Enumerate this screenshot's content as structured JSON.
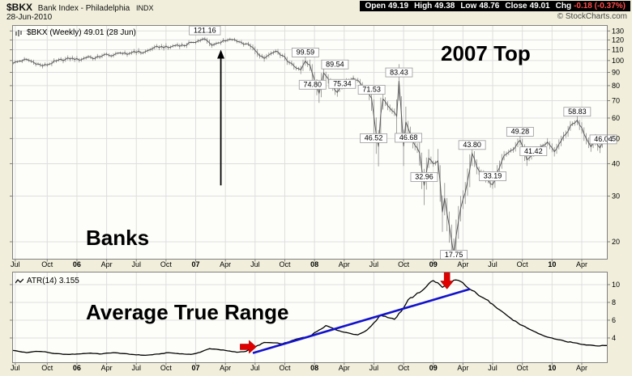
{
  "header": {
    "symbol": "$BKX",
    "title": "Bank Index - Philadelphia",
    "exchange": "INDX",
    "date": "28-Jun-2010",
    "copyright": "© StockCharts.com",
    "quote": {
      "open_label": "Open",
      "open": "49.19",
      "high_label": "High",
      "high": "49.38",
      "low_label": "Low",
      "low": "48.76",
      "close_label": "Close",
      "close": "49.01",
      "chg_label": "Chg",
      "chg": "-0.18 (-0.37%)"
    }
  },
  "colors": {
    "bg": "#F1EFDB",
    "plot_bg": "#FDFDF9",
    "grid": "#DEDEDE",
    "border": "#808080",
    "price_wick": "#8C8C8C",
    "price_line": "#5A5A5A",
    "atr_line": "#000000",
    "trendline": "#1212CC",
    "red_arrow": "#E00000",
    "black_arrow": "#000000",
    "annotation_border": "#999999",
    "band_bg": "#000000",
    "chg_color": "#FF4A4A"
  },
  "xaxis": {
    "ticks": [
      {
        "week": 1,
        "label": "Jul"
      },
      {
        "week": 15,
        "label": "Oct"
      },
      {
        "week": 28,
        "label": "06",
        "year": true
      },
      {
        "week": 41,
        "label": "Apr"
      },
      {
        "week": 54,
        "label": "Jul"
      },
      {
        "week": 67,
        "label": "Oct"
      },
      {
        "week": 80,
        "label": "07",
        "year": true
      },
      {
        "week": 93,
        "label": "Apr"
      },
      {
        "week": 106,
        "label": "Jul"
      },
      {
        "week": 119,
        "label": "Oct"
      },
      {
        "week": 132,
        "label": "08",
        "year": true
      },
      {
        "week": 145,
        "label": "Apr"
      },
      {
        "week": 158,
        "label": "Jul"
      },
      {
        "week": 171,
        "label": "Oct"
      },
      {
        "week": 184,
        "label": "09",
        "year": true
      },
      {
        "week": 197,
        "label": "Apr"
      },
      {
        "week": 210,
        "label": "Jul"
      },
      {
        "week": 223,
        "label": "Oct"
      },
      {
        "week": 236,
        "label": "10",
        "year": true
      },
      {
        "week": 249,
        "label": "Apr"
      }
    ]
  },
  "chart_data": [
    {
      "type": "line",
      "title": "$BKX (Weekly) 49.01 (28 Jun)",
      "scale": "log",
      "ylim": [
        17.2,
        136
      ],
      "yticks": [
        20,
        30,
        40,
        50,
        60,
        70,
        80,
        90,
        100,
        110,
        120,
        130
      ],
      "x_weeks": 260,
      "x_range": "Jun-2005 to Jun-2010 (weekly)",
      "anchors": [
        [
          0,
          97.5
        ],
        [
          3,
          99.5
        ],
        [
          6,
          101
        ],
        [
          9,
          98.5
        ],
        [
          13,
          95.2
        ],
        [
          16,
          97
        ],
        [
          19,
          99.5
        ],
        [
          23,
          101
        ],
        [
          26,
          102.3
        ],
        [
          29,
          100.2
        ],
        [
          33,
          103.5
        ],
        [
          36,
          102
        ],
        [
          40,
          105.5
        ],
        [
          43,
          104
        ],
        [
          47,
          107
        ],
        [
          50,
          105.5
        ],
        [
          53,
          108.5
        ],
        [
          57,
          107
        ],
        [
          61,
          111
        ],
        [
          65,
          113.5
        ],
        [
          68,
          112
        ],
        [
          72,
          115
        ],
        [
          75,
          114
        ],
        [
          78,
          117.5
        ],
        [
          81,
          119
        ],
        [
          84,
          121.16
        ],
        [
          87,
          114.5
        ],
        [
          90,
          117
        ],
        [
          93,
          119
        ],
        [
          96,
          120.3
        ],
        [
          99,
          118
        ],
        [
          102,
          116
        ],
        [
          104,
          113.5
        ],
        [
          107,
          107
        ],
        [
          110,
          101.8
        ],
        [
          113,
          106.5
        ],
        [
          116,
          108
        ],
        [
          118,
          104.5
        ],
        [
          121,
          98
        ],
        [
          124,
          93.5
        ],
        [
          126,
          92
        ],
        [
          128,
          99.59
        ],
        [
          130,
          96
        ],
        [
          132,
          84
        ],
        [
          134,
          74.8
        ],
        [
          136,
          89.54
        ],
        [
          138,
          85
        ],
        [
          140,
          80
        ],
        [
          142,
          75.34
        ],
        [
          144,
          79
        ],
        [
          146,
          83
        ],
        [
          149,
          85.5
        ],
        [
          152,
          82
        ],
        [
          155,
          77
        ],
        [
          157,
          71.53
        ],
        [
          159,
          52
        ],
        [
          160,
          46.52
        ],
        [
          161,
          62
        ],
        [
          162,
          71
        ],
        [
          164,
          67
        ],
        [
          166,
          64
        ],
        [
          168,
          61
        ],
        [
          169,
          83.43
        ],
        [
          171,
          46.68
        ],
        [
          172,
          58
        ],
        [
          174,
          52
        ],
        [
          176,
          47
        ],
        [
          178,
          44
        ],
        [
          180,
          32.96
        ],
        [
          182,
          42
        ],
        [
          184,
          40
        ],
        [
          186,
          41
        ],
        [
          187,
          34
        ],
        [
          188,
          26
        ],
        [
          189,
          29.5
        ],
        [
          191,
          23
        ],
        [
          193,
          17.75
        ],
        [
          194,
          21
        ],
        [
          196,
          27
        ],
        [
          198,
          31
        ],
        [
          200,
          38
        ],
        [
          201,
          43.8
        ],
        [
          203,
          39
        ],
        [
          205,
          37
        ],
        [
          207,
          35
        ],
        [
          210,
          33.19
        ],
        [
          212,
          37
        ],
        [
          215,
          43
        ],
        [
          218,
          45
        ],
        [
          220,
          46.5
        ],
        [
          222,
          49.28
        ],
        [
          225,
          41.42
        ],
        [
          227,
          43
        ],
        [
          229,
          45.5
        ],
        [
          232,
          47
        ],
        [
          234,
          48.5
        ],
        [
          237,
          44.5
        ],
        [
          240,
          49
        ],
        [
          242,
          52
        ],
        [
          244,
          56
        ],
        [
          247,
          58.83
        ],
        [
          249,
          55
        ],
        [
          251,
          50
        ],
        [
          253,
          46.5
        ],
        [
          255,
          49.5
        ],
        [
          257,
          46.04
        ],
        [
          259,
          49.01
        ],
        [
          260,
          49.01
        ]
      ],
      "annotations": [
        {
          "week": 84,
          "value": 121.16,
          "label": "121.16"
        },
        {
          "week": 128,
          "value": 99.59,
          "label": "99.59"
        },
        {
          "week": 136,
          "value": 89.54,
          "label": "89.54",
          "dx": 14
        },
        {
          "week": 134,
          "value": 74.8,
          "label": "74.80",
          "dx": -8
        },
        {
          "week": 142,
          "value": 75.34,
          "label": "75.34",
          "dx": 6
        },
        {
          "week": 157,
          "value": 71.53,
          "label": "71.53"
        },
        {
          "week": 169,
          "value": 83.43,
          "label": "83.43"
        },
        {
          "week": 160,
          "value": 46.52,
          "label": "46.52",
          "dx": -6
        },
        {
          "week": 171,
          "value": 46.68,
          "label": "46.68",
          "dx": 6
        },
        {
          "week": 180,
          "value": 32.96,
          "label": "32.96"
        },
        {
          "week": 193,
          "value": 17.75,
          "label": "17.75",
          "dy": 10
        },
        {
          "week": 201,
          "value": 43.8,
          "label": "43.80"
        },
        {
          "week": 210,
          "value": 33.19,
          "label": "33.19"
        },
        {
          "week": 222,
          "value": 49.28,
          "label": "49.28"
        },
        {
          "week": 225,
          "value": 41.42,
          "label": "41.42",
          "dx": 8
        },
        {
          "week": 247,
          "value": 58.83,
          "label": "58.83"
        },
        {
          "week": 257,
          "value": 46.04,
          "label": "46.04",
          "dx": 4
        }
      ],
      "black_arrow": {
        "week": 91,
        "from_value": 33,
        "to_value": 110
      },
      "texts": [
        {
          "label": "2007 Top",
          "week": 208,
          "value": 106
        },
        {
          "label": "Banks",
          "week": 47,
          "value": 22
        }
      ]
    },
    {
      "type": "line",
      "title": "ATR(14) 3.155",
      "scale": "linear",
      "ylim": [
        1.27,
        11.36
      ],
      "yticks": [
        4,
        6,
        8,
        10
      ],
      "x_weeks": 260,
      "anchors": [
        [
          0,
          2.6
        ],
        [
          6,
          2.35
        ],
        [
          10,
          2.5
        ],
        [
          14,
          2.45
        ],
        [
          18,
          2.25
        ],
        [
          24,
          2.15
        ],
        [
          28,
          2.2
        ],
        [
          34,
          2.3
        ],
        [
          38,
          2.2
        ],
        [
          44,
          2.35
        ],
        [
          48,
          2.25
        ],
        [
          52,
          2.15
        ],
        [
          58,
          2.05
        ],
        [
          64,
          2.2
        ],
        [
          68,
          2.35
        ],
        [
          72,
          2.25
        ],
        [
          78,
          2.15
        ],
        [
          82,
          2.4
        ],
        [
          86,
          2.8
        ],
        [
          90,
          2.7
        ],
        [
          94,
          2.55
        ],
        [
          98,
          2.4
        ],
        [
          102,
          2.5
        ],
        [
          106,
          3.0
        ],
        [
          110,
          3.5
        ],
        [
          114,
          3.45
        ],
        [
          118,
          3.35
        ],
        [
          122,
          3.7
        ],
        [
          126,
          4.0
        ],
        [
          130,
          4.2
        ],
        [
          134,
          4.9
        ],
        [
          137,
          5.4
        ],
        [
          140,
          5.1
        ],
        [
          143,
          4.8
        ],
        [
          147,
          4.55
        ],
        [
          151,
          4.35
        ],
        [
          155,
          4.9
        ],
        [
          158,
          5.7
        ],
        [
          161,
          6.6
        ],
        [
          164,
          6.3
        ],
        [
          167,
          6.1
        ],
        [
          170,
          7.0
        ],
        [
          173,
          8.3
        ],
        [
          176,
          8.8
        ],
        [
          179,
          9.3
        ],
        [
          182,
          10.1
        ],
        [
          184,
          10.45
        ],
        [
          186,
          10.2
        ],
        [
          188,
          9.7
        ],
        [
          190,
          9.9
        ],
        [
          193,
          10.5
        ],
        [
          196,
          10.35
        ],
        [
          198,
          9.9
        ],
        [
          200,
          9.5
        ],
        [
          203,
          9.0
        ],
        [
          206,
          8.5
        ],
        [
          210,
          7.8
        ],
        [
          214,
          7.0
        ],
        [
          218,
          6.2
        ],
        [
          222,
          5.5
        ],
        [
          226,
          5.0
        ],
        [
          230,
          4.5
        ],
        [
          234,
          4.1
        ],
        [
          238,
          3.85
        ],
        [
          242,
          3.6
        ],
        [
          246,
          3.45
        ],
        [
          250,
          3.25
        ],
        [
          253,
          3.2
        ],
        [
          256,
          3.1
        ],
        [
          259,
          3.155
        ],
        [
          260,
          3.155
        ]
      ],
      "trendline": {
        "from_week": 105,
        "from_value": 2.3,
        "to_week": 200,
        "to_value": 9.5
      },
      "red_arrows": [
        {
          "dir": "right",
          "week": 103,
          "value": 3.0
        },
        {
          "dir": "down",
          "week": 190,
          "value": 10.5
        }
      ],
      "texts": [
        {
          "label": "Average True Range",
          "week": 82,
          "value": 6.7
        }
      ]
    }
  ]
}
